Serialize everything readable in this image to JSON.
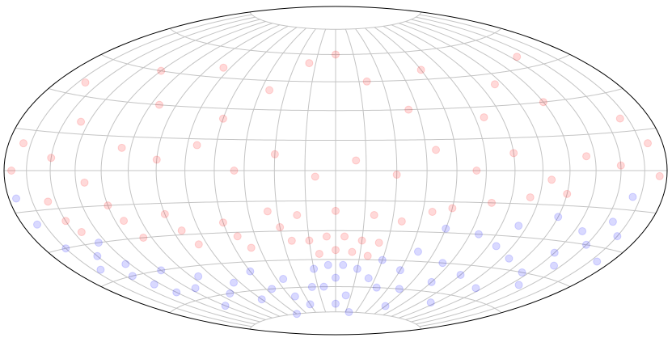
{
  "chart_data": {
    "type": "scatter",
    "projection": "hammer",
    "grid": true,
    "xlim": [
      -180,
      180
    ],
    "ylim": [
      -90,
      90
    ],
    "xticks": [
      -165,
      -150,
      -135,
      -120,
      -105,
      -90,
      -75,
      -60,
      -45,
      -30,
      -15,
      0,
      15,
      30,
      45,
      60,
      75,
      90,
      105,
      120,
      135,
      150,
      165
    ],
    "yticks": [
      -75,
      -60,
      -45,
      -30,
      -15,
      0,
      15,
      30,
      45,
      60,
      75
    ],
    "alpha": 0.15,
    "series": [
      {
        "color": "#ff0000",
        "x": [
          -160,
          -140,
          -120,
          -100,
          -80,
          -60,
          -40,
          -20,
          0,
          20,
          40,
          60,
          80,
          100,
          120,
          140,
          160,
          -170,
          -150,
          -130,
          -110,
          -90,
          -70,
          -50,
          -30,
          -10,
          10,
          30,
          50,
          70,
          90,
          110,
          130,
          150,
          170,
          -175,
          175,
          -150,
          -145,
          -155,
          -120,
          -115,
          -110,
          -90,
          -85,
          -80,
          -60,
          -55,
          -50,
          -30,
          -25,
          -15,
          -5,
          5,
          15,
          25,
          -35,
          -20,
          0,
          20,
          35,
          50,
          60,
          80,
          100,
          120,
          -10,
          0,
          10,
          20
        ],
        "values": [
          35,
          20,
          45,
          30,
          50,
          25,
          40,
          55,
          60,
          45,
          30,
          50,
          25,
          40,
          30,
          50,
          20,
          10,
          5,
          -5,
          10,
          5,
          12,
          0,
          8,
          -3,
          5,
          -2,
          10,
          0,
          8,
          -4,
          6,
          2,
          10,
          0,
          -2,
          -20,
          -25,
          -12,
          -15,
          -22,
          -30,
          -20,
          -28,
          -35,
          -25,
          -32,
          -38,
          -28,
          -35,
          -35,
          -33,
          -33,
          -35,
          -36,
          -20,
          -22,
          -20,
          -22,
          -25,
          -20,
          -18,
          -15,
          -12,
          -10,
          -42,
          -40,
          -41,
          -43
        ]
      },
      {
        "color": "#0000ff",
        "x": [
          -170,
          -165,
          -160,
          -150,
          -145,
          -140,
          -138,
          -140,
          -135,
          -120,
          -115,
          -100,
          -95,
          -80,
          -75,
          -60,
          -55,
          -40,
          -40,
          -30,
          -20,
          -15,
          -5,
          5,
          15,
          25,
          30,
          35,
          10,
          0,
          -10,
          0,
          20,
          45,
          50,
          55,
          70,
          75,
          90,
          95,
          110,
          115,
          130,
          135,
          140,
          142,
          145,
          150,
          155,
          160,
          165,
          170,
          -175,
          -60,
          60,
          100,
          -120,
          120,
          100,
          80,
          60
        ],
        "values": [
          -20,
          -30,
          -40,
          -35,
          -45,
          -50,
          -40,
          -30,
          -55,
          -45,
          -55,
          -50,
          -60,
          -55,
          -65,
          -50,
          -60,
          -55,
          -65,
          -70,
          -60,
          -50,
          -48,
          -48,
          -50,
          -55,
          -45,
          -60,
          -65,
          -70,
          -60,
          -55,
          -75,
          -50,
          -40,
          -60,
          -45,
          -55,
          -50,
          -35,
          -40,
          -55,
          -45,
          -35,
          -25,
          -50,
          -40,
          -30,
          -20,
          -10,
          -25,
          -35,
          -10,
          -75,
          -70,
          -65,
          -65,
          -20,
          -25,
          -30,
          -28
        ]
      }
    ]
  }
}
